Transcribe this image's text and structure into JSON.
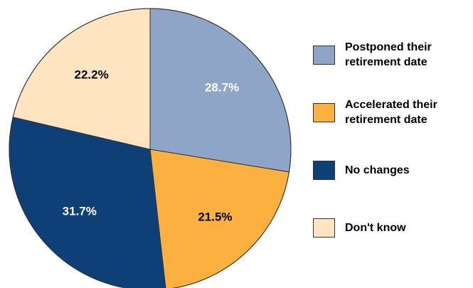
{
  "chart_data": {
    "type": "pie",
    "title": "",
    "start_angle_deg": 0,
    "direction": "clockwise",
    "slices": [
      {
        "label": "Postponed their retirement date",
        "value": 28.7,
        "display": "28.7%",
        "color": "#8FA5C8",
        "label_color": "#ffffff"
      },
      {
        "label": "Accelerated their retirement date",
        "value": 21.5,
        "display": "21.5%",
        "color": "#FBB040",
        "label_color": "#000000"
      },
      {
        "label": "No changes",
        "value": 31.7,
        "display": "31.7%",
        "color": "#0E3F76",
        "label_color": "#ffffff"
      },
      {
        "label": "Don't know",
        "value": 22.2,
        "display": "22.2%",
        "color": "#FFE4C2",
        "label_color": "#000000"
      }
    ],
    "legend_position": "right"
  },
  "legend": {
    "items": [
      {
        "label_line1": "Postponed their",
        "label_line2": "retirement date",
        "color": "#8FA5C8"
      },
      {
        "label_line1": "Accelerated their",
        "label_line2": "retirement date",
        "color": "#FBB040"
      },
      {
        "label_line1": "No changes",
        "label_line2": "",
        "color": "#0E3F76"
      },
      {
        "label_line1": "Don't know",
        "label_line2": "",
        "color": "#FFE4C2"
      }
    ]
  }
}
